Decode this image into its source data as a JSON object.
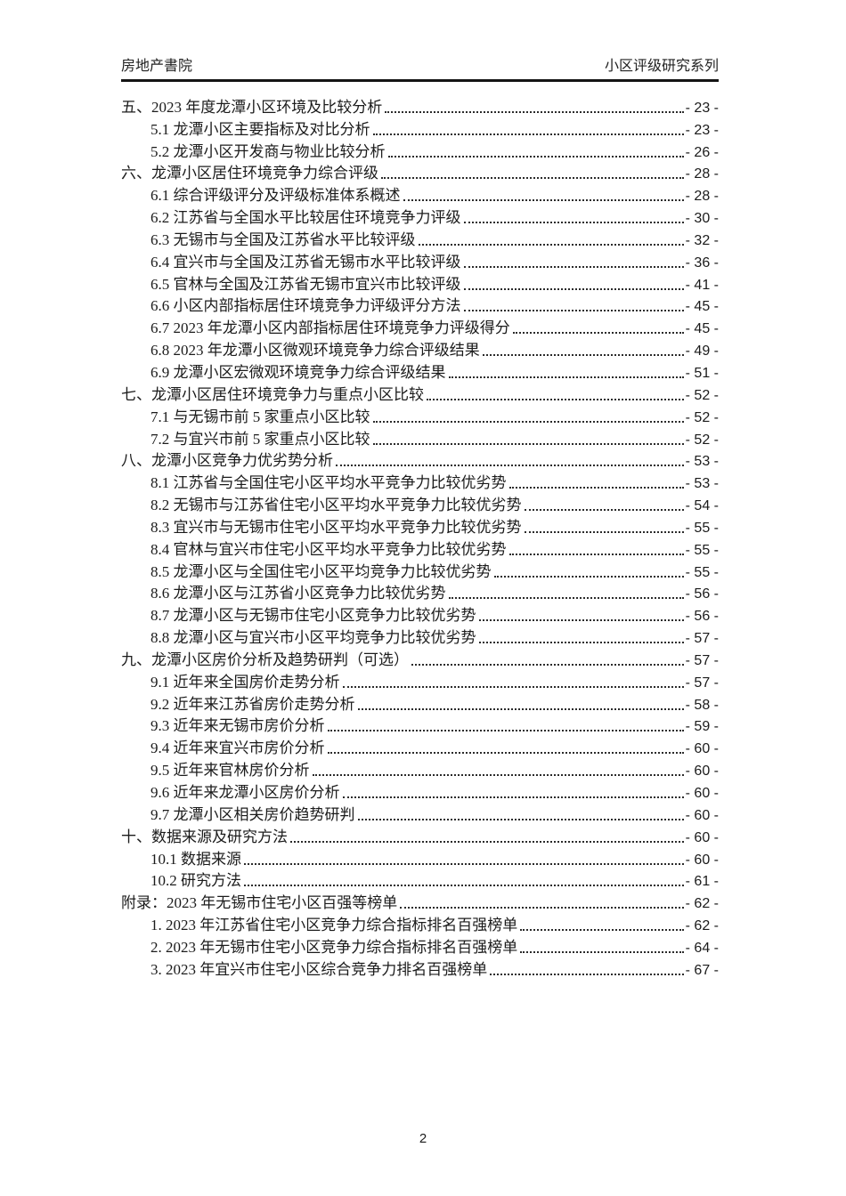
{
  "header": {
    "left": "房地产書院",
    "right": "小区评级研究系列"
  },
  "toc": {
    "entries": [
      {
        "level": 1,
        "label": "五、2023 年度龙潭小区环境及比较分析",
        "page": "- 23 -"
      },
      {
        "level": 2,
        "label": "5.1 龙潭小区主要指标及对比分析",
        "page": "- 23 -"
      },
      {
        "level": 2,
        "label": "5.2 龙潭小区开发商与物业比较分析",
        "page": "- 26 -"
      },
      {
        "level": 1,
        "label": "六、龙潭小区居住环境竞争力综合评级",
        "page": "- 28 -"
      },
      {
        "level": 2,
        "label": "6.1 综合评级评分及评级标准体系概述",
        "page": "- 28 -"
      },
      {
        "level": 2,
        "label": "6.2 江苏省与全国水平比较居住环境竞争力评级",
        "page": "- 30 -"
      },
      {
        "level": 2,
        "label": "6.3 无锡市与全国及江苏省水平比较评级",
        "page": "- 32 -"
      },
      {
        "level": 2,
        "label": "6.4 宜兴市与全国及江苏省无锡市水平比较评级",
        "page": "- 36 -"
      },
      {
        "level": 2,
        "label": "6.5 官林与全国及江苏省无锡市宜兴市比较评级",
        "page": "- 41 -"
      },
      {
        "level": 2,
        "label": "6.6 小区内部指标居住环境竞争力评级评分方法",
        "page": "- 45 -"
      },
      {
        "level": 2,
        "label": "6.7 2023 年龙潭小区内部指标居住环境竞争力评级得分",
        "page": "- 45 -"
      },
      {
        "level": 2,
        "label": "6.8 2023 年龙潭小区微观环境竞争力综合评级结果",
        "page": "- 49 -"
      },
      {
        "level": 2,
        "label": "6.9 龙潭小区宏微观环境竞争力综合评级结果",
        "page": "- 51 -"
      },
      {
        "level": 1,
        "label": "七、龙潭小区居住环境竞争力与重点小区比较",
        "page": "- 52 -"
      },
      {
        "level": 2,
        "label": "7.1 与无锡市前 5 家重点小区比较",
        "page": "- 52 -"
      },
      {
        "level": 2,
        "label": "7.2 与宜兴市前 5 家重点小区比较",
        "page": "- 52 -"
      },
      {
        "level": 1,
        "label": "八、龙潭小区竞争力优劣势分析",
        "page": "- 53 -"
      },
      {
        "level": 2,
        "label": "8.1 江苏省与全国住宅小区平均水平竞争力比较优劣势",
        "page": "- 53 -"
      },
      {
        "level": 2,
        "label": "8.2 无锡市与江苏省住宅小区平均水平竞争力比较优劣势",
        "page": "- 54 -"
      },
      {
        "level": 2,
        "label": "8.3 宜兴市与无锡市住宅小区平均水平竞争力比较优劣势",
        "page": "- 55 -"
      },
      {
        "level": 2,
        "label": "8.4 官林与宜兴市住宅小区平均水平竞争力比较优劣势",
        "page": "- 55 -"
      },
      {
        "level": 2,
        "label": "8.5 龙潭小区与全国住宅小区平均竞争力比较优劣势",
        "page": "- 55 -"
      },
      {
        "level": 2,
        "label": "8.6 龙潭小区与江苏省小区竞争力比较优劣势",
        "page": "- 56 -"
      },
      {
        "level": 2,
        "label": "8.7 龙潭小区与无锡市住宅小区竞争力比较优劣势",
        "page": "- 56 -"
      },
      {
        "level": 2,
        "label": "8.8 龙潭小区与宜兴市小区平均竞争力比较优劣势",
        "page": "- 57 -"
      },
      {
        "level": 1,
        "label": "九、龙潭小区房价分析及趋势研判（可选）",
        "page": "- 57 -"
      },
      {
        "level": 2,
        "label": "9.1 近年来全国房价走势分析",
        "page": "- 57 -"
      },
      {
        "level": 2,
        "label": "9.2 近年来江苏省房价走势分析",
        "page": "- 58 -"
      },
      {
        "level": 2,
        "label": "9.3 近年来无锡市房价分析",
        "page": "- 59 -"
      },
      {
        "level": 2,
        "label": "9.4 近年来宜兴市房价分析",
        "page": "- 60 -"
      },
      {
        "level": 2,
        "label": "9.5 近年来官林房价分析",
        "page": "- 60 -"
      },
      {
        "level": 2,
        "label": "9.6 近年来龙潭小区房价分析",
        "page": "- 60 -"
      },
      {
        "level": 2,
        "label": "9.7 龙潭小区相关房价趋势研判",
        "page": "- 60 -"
      },
      {
        "level": 1,
        "label": "十、数据来源及研究方法",
        "page": "- 60 -"
      },
      {
        "level": 2,
        "label": "10.1 数据来源",
        "page": "- 60 -"
      },
      {
        "level": 2,
        "label": "10.2 研究方法",
        "page": "- 61 -"
      },
      {
        "level": 1,
        "label": "附录：2023 年无锡市住宅小区百强等榜单",
        "page": "- 62 -"
      },
      {
        "level": 2,
        "label": "1. 2023 年江苏省住宅小区竞争力综合指标排名百强榜单",
        "page": "- 62 -"
      },
      {
        "level": 2,
        "label": "2. 2023 年无锡市住宅小区竞争力综合指标排名百强榜单",
        "page": "- 64 -"
      },
      {
        "level": 2,
        "label": "3. 2023 年宜兴市住宅小区综合竞争力排名百强榜单",
        "page": "- 67 -"
      }
    ]
  },
  "footer": {
    "page_number": "2"
  }
}
